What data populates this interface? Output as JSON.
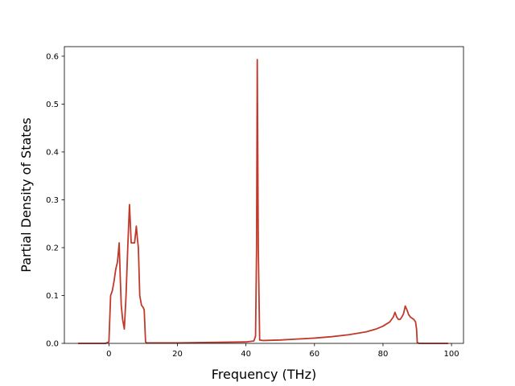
{
  "chart_data": {
    "type": "line",
    "title": "",
    "xlabel": "Frequency (THz)",
    "ylabel": "Partial Density of States",
    "xlim": [
      -13,
      103.5
    ],
    "ylim": [
      0,
      0.62
    ],
    "xticks": [
      0,
      20,
      40,
      60,
      80,
      100
    ],
    "yticks": [
      0.0,
      0.1,
      0.2,
      0.3,
      0.4,
      0.5,
      0.6
    ],
    "grid": false,
    "legend": "none",
    "series": [
      {
        "color": "#c0392b",
        "x": [
          -9,
          -1,
          0,
          0.5,
          1,
          1.5,
          2,
          2.5,
          3,
          3.3,
          3.6,
          4,
          4.5,
          5,
          5.5,
          6,
          6.2,
          6.5,
          7,
          7.5,
          8,
          8.3,
          8.6,
          9,
          9.5,
          10,
          10.3,
          10.7,
          11,
          20,
          30,
          40,
          42.3,
          42.8,
          43.1,
          43.3,
          43.6,
          44,
          45,
          50,
          55,
          60,
          65,
          70,
          75,
          78,
          80,
          82,
          83,
          83.5,
          84,
          84.5,
          85,
          85.5,
          86,
          86.5,
          87,
          87.5,
          88,
          89,
          89.5,
          89.8,
          90,
          90.5,
          99
        ],
        "y": [
          0,
          0,
          0.003,
          0.1,
          0.11,
          0.13,
          0.155,
          0.17,
          0.21,
          0.14,
          0.08,
          0.05,
          0.03,
          0.1,
          0.2,
          0.29,
          0.26,
          0.21,
          0.21,
          0.21,
          0.245,
          0.22,
          0.2,
          0.1,
          0.08,
          0.075,
          0.07,
          0.003,
          0.001,
          0.001,
          0.002,
          0.003,
          0.005,
          0.015,
          0.2,
          0.593,
          0.2,
          0.007,
          0.006,
          0.007,
          0.009,
          0.011,
          0.014,
          0.018,
          0.024,
          0.03,
          0.036,
          0.045,
          0.055,
          0.065,
          0.055,
          0.05,
          0.05,
          0.055,
          0.062,
          0.078,
          0.07,
          0.06,
          0.055,
          0.05,
          0.045,
          0.03,
          0.002,
          0,
          0
        ]
      }
    ]
  }
}
